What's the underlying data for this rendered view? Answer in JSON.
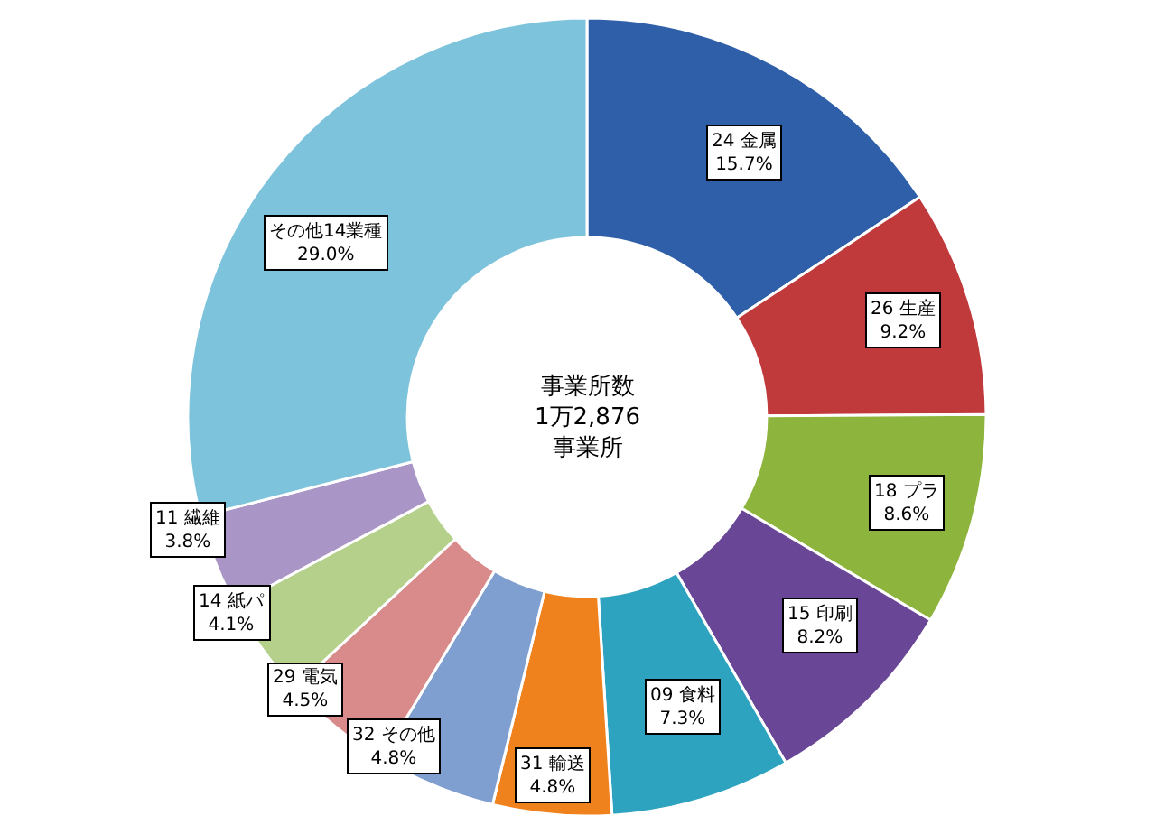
{
  "chart_data": {
    "type": "donut",
    "categories": [
      "24 金属",
      "26 生産",
      "18 プラ",
      "15 印刷",
      "09 食料",
      "31 輸送",
      "32 その他",
      "29 電気",
      "14 紙パ",
      "11 繊維",
      "その他14業種"
    ],
    "values": [
      15.7,
      9.2,
      8.6,
      8.2,
      7.3,
      4.8,
      4.8,
      4.5,
      4.1,
      3.8,
      29.0
    ],
    "value_labels": [
      "15.7%",
      "9.2%",
      "8.6%",
      "8.2%",
      "7.3%",
      "4.8%",
      "4.8%",
      "4.5%",
      "4.1%",
      "3.8%",
      "29.0%"
    ],
    "colors": [
      "#2e5fa8",
      "#c0393b",
      "#8db43c",
      "#6a4796",
      "#2ea3bf",
      "#f0821e",
      "#7f9fd0",
      "#d98a8a",
      "#b5d08a",
      "#a995c6",
      "#7ec3dc"
    ],
    "annotations": [
      "事業所数\n1万2,876\n事業所"
    ],
    "legend": false
  }
}
